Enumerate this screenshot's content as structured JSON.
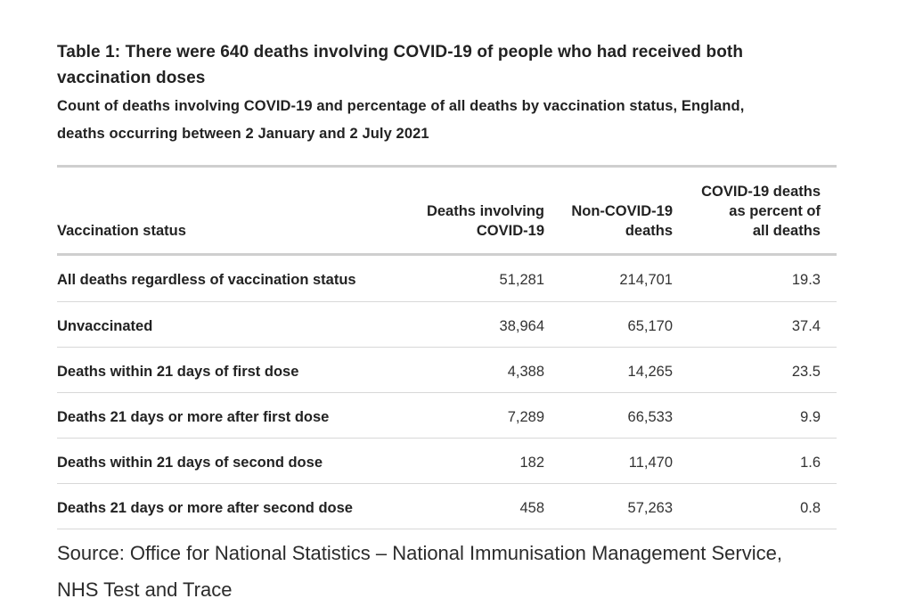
{
  "table": {
    "title_line1": "Table 1: There were 640 deaths involving COVID-19 of people who had received both",
    "title_line2": "vaccination doses",
    "subtitle_line1": "Count of deaths involving COVID-19 and percentage of all deaths by vaccination status, England,",
    "subtitle_line2": "deaths occurring between 2 January and 2 July 2021",
    "headers": {
      "status": "Vaccination status",
      "covid_line1": "Deaths involving",
      "covid_line2": "COVID-19",
      "noncovid_line1": "Non-COVID-19",
      "noncovid_line2": "deaths",
      "pct_line1": "COVID-19 deaths",
      "pct_line2": "as percent of",
      "pct_line3": "all deaths"
    },
    "rows": [
      {
        "status": "All deaths regardless of vaccination status",
        "covid": "51,281",
        "noncovid": "214,701",
        "pct": "19.3"
      },
      {
        "status": "Unvaccinated",
        "covid": "38,964",
        "noncovid": "65,170",
        "pct": "37.4"
      },
      {
        "status": "Deaths within 21 days of first dose",
        "covid": "4,388",
        "noncovid": "14,265",
        "pct": "23.5"
      },
      {
        "status": "Deaths 21 days or more after first dose",
        "covid": "7,289",
        "noncovid": "66,533",
        "pct": "9.9"
      },
      {
        "status": "Deaths within 21 days of second dose",
        "covid": "182",
        "noncovid": "11,470",
        "pct": "1.6"
      },
      {
        "status": "Deaths 21 days or more after second dose",
        "covid": "458",
        "noncovid": "57,263",
        "pct": "0.8"
      }
    ],
    "source_line1": "Source: Office for National Statistics – National Immunisation Management Service,",
    "source_line2": "NHS Test and Trace"
  }
}
